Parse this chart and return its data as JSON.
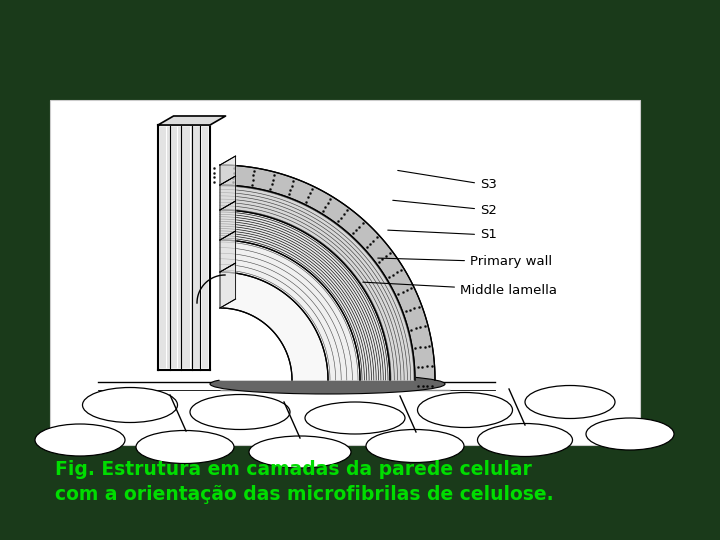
{
  "bg_color": "#1a3a1a",
  "panel_facecolor": "#ffffff",
  "panel_edgecolor": "#cccccc",
  "caption_line1": "Fig. Estrutura em camadas da parede celular",
  "caption_line2": "com a orientação das microfibrilas de celulose.",
  "caption_color": "#00dd00",
  "caption_fontsize": 13.5,
  "labels": [
    "S3",
    "S2",
    "S1",
    "Primary wall",
    "Middle lamella"
  ]
}
